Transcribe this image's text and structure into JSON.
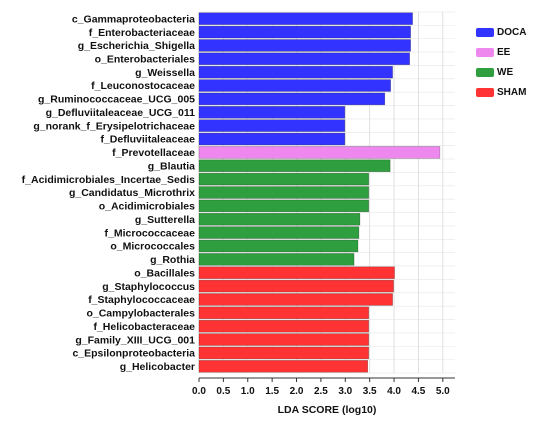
{
  "chart_data": {
    "type": "bar",
    "orientation": "horizontal",
    "xlabel": "LDA SCORE (log10)",
    "xlim": [
      0,
      5.25
    ],
    "xticks": [
      "0.0",
      "0.5",
      "1.0",
      "1.5",
      "2.0",
      "2.5",
      "3.0",
      "3.5",
      "4.0",
      "4.5",
      "5.0"
    ],
    "grid": true,
    "legend_position": "top-right",
    "groups": [
      {
        "name": "DOCA",
        "color": "#3333ff"
      },
      {
        "name": "EE",
        "color": "#ee88ee"
      },
      {
        "name": "WE",
        "color": "#2e9e3e"
      },
      {
        "name": "SHAM",
        "color": "#ff3333"
      }
    ],
    "bars": [
      {
        "label": "c_Gammaproteobacteria",
        "value": 4.38,
        "group": "DOCA"
      },
      {
        "label": "f_Enterobacteriaceae",
        "value": 4.34,
        "group": "DOCA"
      },
      {
        "label": "g_Escherichia_Shigella",
        "value": 4.34,
        "group": "DOCA"
      },
      {
        "label": "o_Enterobacteriales",
        "value": 4.32,
        "group": "DOCA"
      },
      {
        "label": "g_Weissella",
        "value": 3.97,
        "group": "DOCA"
      },
      {
        "label": "f_Leuconostocaceae",
        "value": 3.93,
        "group": "DOCA"
      },
      {
        "label": "g_Ruminococcaceae_UCG_005",
        "value": 3.81,
        "group": "DOCA"
      },
      {
        "label": "g_Defluviitaleaceae_UCG_011",
        "value": 2.99,
        "group": "DOCA"
      },
      {
        "label": "g_norank_f_Erysipelotrichaceae",
        "value": 2.99,
        "group": "DOCA"
      },
      {
        "label": "f_Defluviitaleaceae",
        "value": 2.99,
        "group": "DOCA"
      },
      {
        "label": "f_Prevotellaceae",
        "value": 4.94,
        "group": "EE"
      },
      {
        "label": "g_Blautia",
        "value": 3.92,
        "group": "WE"
      },
      {
        "label": "f_Acidimicrobiales_Incertae_Sedis",
        "value": 3.48,
        "group": "WE"
      },
      {
        "label": "g_Candidatus_Microthrix",
        "value": 3.48,
        "group": "WE"
      },
      {
        "label": "o_Acidimicrobiales",
        "value": 3.48,
        "group": "WE"
      },
      {
        "label": "g_Sutterella",
        "value": 3.3,
        "group": "WE"
      },
      {
        "label": "f_Micrococcaceae",
        "value": 3.28,
        "group": "WE"
      },
      {
        "label": "o_Micrococcales",
        "value": 3.26,
        "group": "WE"
      },
      {
        "label": "g_Rothia",
        "value": 3.18,
        "group": "WE"
      },
      {
        "label": "o_Bacillales",
        "value": 4.01,
        "group": "SHAM"
      },
      {
        "label": "g_Staphylococcus",
        "value": 3.99,
        "group": "SHAM"
      },
      {
        "label": "f_Staphylococcaceae",
        "value": 3.97,
        "group": "SHAM"
      },
      {
        "label": "o_Campylobacterales",
        "value": 3.48,
        "group": "SHAM"
      },
      {
        "label": "f_Helicobacteraceae",
        "value": 3.48,
        "group": "SHAM"
      },
      {
        "label": "g_Family_XIII_UCG_001",
        "value": 3.48,
        "group": "SHAM"
      },
      {
        "label": "c_Epsilonproteobacteria",
        "value": 3.48,
        "group": "SHAM"
      },
      {
        "label": "g_Helicobacter",
        "value": 3.46,
        "group": "SHAM"
      }
    ]
  }
}
